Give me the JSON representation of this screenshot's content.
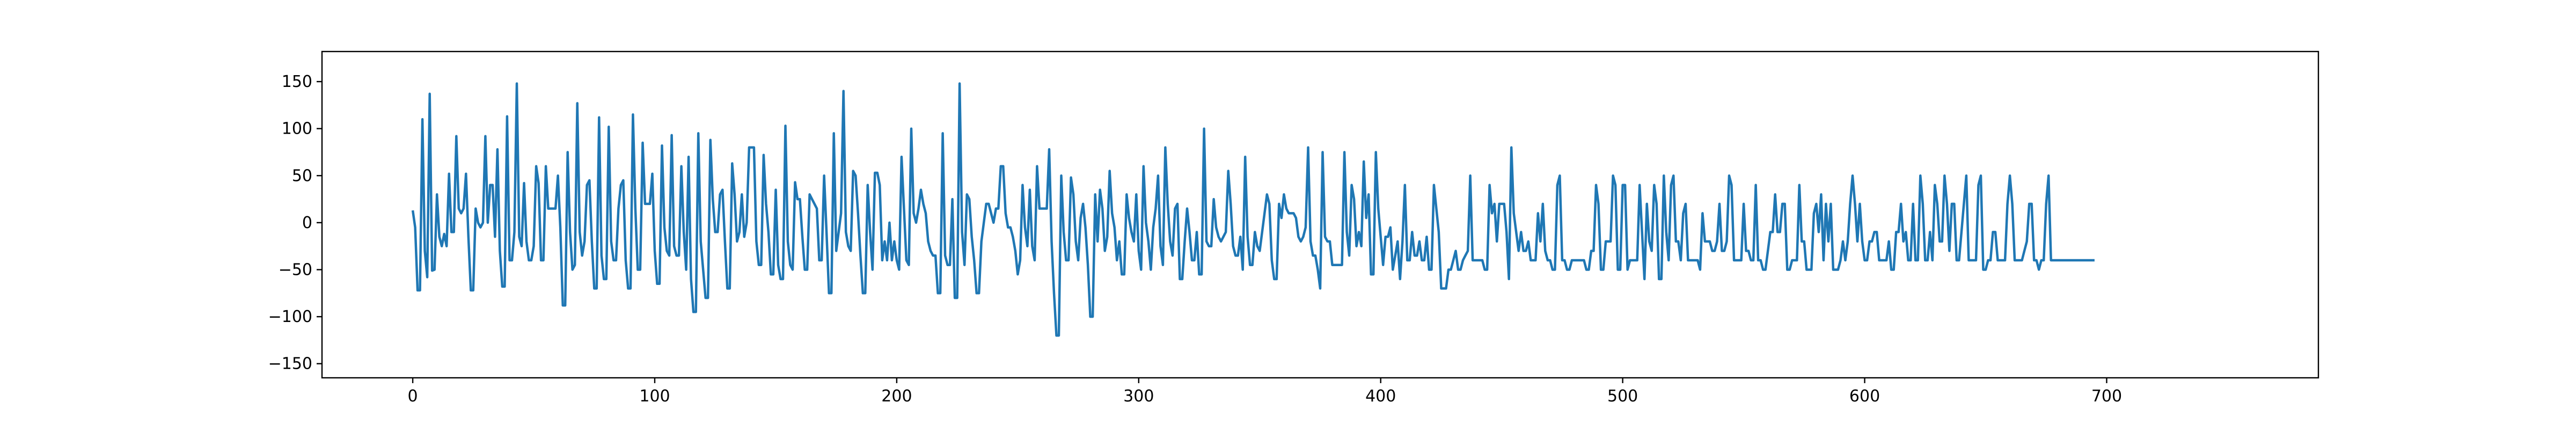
{
  "chart_data": {
    "type": "line",
    "title": "",
    "xlabel": "",
    "ylabel": "",
    "xlim": [
      -37.5,
      787.5
    ],
    "ylim": [
      -165,
      182
    ],
    "xticks": [
      0,
      100,
      200,
      300,
      400,
      500,
      600,
      700
    ],
    "yticks": [
      -150,
      -100,
      -50,
      0,
      50,
      100,
      150
    ],
    "xtick_labels": [
      "0",
      "100",
      "200",
      "300",
      "400",
      "500",
      "600",
      "700"
    ],
    "ytick_labels": [
      "−150",
      "−100",
      "−50",
      "0",
      "50",
      "100",
      "150"
    ],
    "grid": false,
    "legend": "none",
    "line_color": "#1f77b4",
    "series": [
      {
        "x_start": 0,
        "x_step": 1,
        "values": [
          13,
          -5,
          -72,
          -72,
          110,
          -30,
          -58,
          137,
          -51,
          -50,
          30,
          -15,
          -25,
          -12,
          -25,
          52,
          -10,
          -10,
          92,
          15,
          10,
          15,
          52,
          -15,
          -72,
          -72,
          15,
          0,
          -5,
          0,
          92,
          0,
          40,
          40,
          -15,
          78,
          -30,
          -68,
          -68,
          113,
          -40,
          -40,
          -10,
          148,
          -15,
          -25,
          42,
          -20,
          -40,
          -40,
          -25,
          60,
          42,
          -40,
          -40,
          60,
          15,
          15,
          15,
          15,
          50,
          -5,
          -88,
          -88,
          75,
          -10,
          -50,
          -45,
          127,
          -10,
          -35,
          -20,
          40,
          45,
          -20,
          -70,
          -70,
          112,
          -35,
          -60,
          -60,
          102,
          -20,
          -40,
          -40,
          15,
          40,
          45,
          -40,
          -70,
          -70,
          115,
          15,
          -50,
          -50,
          85,
          20,
          20,
          20,
          52,
          -30,
          -65,
          -65,
          82,
          -5,
          -30,
          -35,
          93,
          -25,
          -35,
          -35,
          60,
          -10,
          -50,
          70,
          -60,
          -95,
          -95,
          95,
          -20,
          -50,
          -80,
          -80,
          88,
          25,
          -10,
          -10,
          30,
          35,
          -20,
          -70,
          -70,
          63,
          30,
          -20,
          -10,
          30,
          -15,
          0,
          80,
          80,
          80,
          -20,
          -45,
          -45,
          72,
          20,
          -10,
          -55,
          -55,
          35,
          -45,
          -60,
          -60,
          103,
          -20,
          -45,
          -50,
          43,
          25,
          25,
          -15,
          -50,
          -50,
          30,
          25,
          20,
          15,
          -40,
          -40,
          50,
          -10,
          -75,
          -75,
          95,
          -30,
          -10,
          10,
          140,
          -10,
          -25,
          -30,
          55,
          50,
          10,
          -35,
          -75,
          -75,
          40,
          -10,
          -50,
          53,
          53,
          40,
          -40,
          -20,
          -40,
          0,
          -40,
          -20,
          -40,
          -50,
          70,
          15,
          -40,
          -45,
          100,
          10,
          0,
          15,
          35,
          20,
          10,
          -20,
          -30,
          -35,
          -35,
          -75,
          -75,
          95,
          -35,
          -45,
          -45,
          25,
          -80,
          -80,
          148,
          -10,
          -45,
          30,
          25,
          -15,
          -40,
          -75,
          -75,
          -20,
          0,
          20,
          20,
          10,
          0,
          15,
          15,
          60,
          60,
          10,
          -5,
          -5,
          -15,
          -30,
          -55,
          -40,
          40,
          -5,
          -25,
          35,
          -25,
          -40,
          60,
          15,
          15,
          15,
          15,
          78,
          -20,
          -75,
          -120,
          -120,
          50,
          -10,
          -40,
          -40,
          48,
          30,
          -20,
          -40,
          5,
          20,
          -5,
          -45,
          -100,
          -100,
          30,
          -20,
          35,
          15,
          -30,
          -15,
          55,
          10,
          -5,
          -40,
          -20,
          -55,
          -55,
          30,
          5,
          -10,
          -20,
          30,
          -30,
          -50,
          60,
          0,
          -20,
          -50,
          -5,
          15,
          50,
          -25,
          -45,
          80,
          20,
          -20,
          -35,
          15,
          20,
          -60,
          -60,
          -20,
          15,
          -10,
          -40,
          -40,
          -10,
          -55,
          -55,
          100,
          -20,
          -25,
          -25,
          25,
          -5,
          -15,
          -20,
          -15,
          -10,
          55,
          20,
          -25,
          -35,
          -35,
          -15,
          -50,
          70,
          -15,
          -45,
          -45,
          -10,
          -25,
          -30,
          -10,
          10,
          30,
          20,
          -40,
          -60,
          -60,
          20,
          5,
          30,
          15,
          10,
          10,
          10,
          5,
          -15,
          -20,
          -15,
          -5,
          80,
          -20,
          -35,
          -35,
          -50,
          -70,
          75,
          -15,
          -20,
          -20,
          -45,
          -45,
          -45,
          -45,
          -45,
          75,
          -10,
          -35,
          40,
          25,
          -25,
          -10,
          -25,
          65,
          5,
          30,
          -55,
          -55,
          75,
          15,
          -15,
          -45,
          -15,
          -15,
          -5,
          -50,
          -35,
          -20,
          -60,
          -20,
          40,
          -40,
          -40,
          -10,
          -35,
          -35,
          -20,
          -40,
          -40,
          -15,
          -50,
          -50,
          40,
          15,
          -10,
          -70,
          -70,
          -70,
          -50,
          -50,
          -40,
          -30,
          -50,
          -50,
          -40,
          -35,
          -30,
          50,
          -40,
          -40,
          -40,
          -40,
          -40,
          -50,
          -50,
          40,
          10,
          20,
          -20,
          20,
          20,
          20,
          -10,
          -60,
          80,
          10,
          -10,
          -30,
          -10,
          -30,
          -30,
          -20,
          -40,
          -40,
          -40,
          10,
          -20,
          20,
          -30,
          -40,
          -40,
          -50,
          -50,
          40,
          50,
          -40,
          -40,
          -50,
          -50,
          -40,
          -40,
          -40,
          -40,
          -40,
          -40,
          -50,
          -50,
          -30,
          -30,
          40,
          20,
          -50,
          -50,
          -20,
          -20,
          -20,
          50,
          40,
          -50,
          -50,
          40,
          40,
          -50,
          -40,
          -40,
          -40,
          -40,
          40,
          -10,
          -60,
          20,
          -20,
          -30,
          40,
          20,
          -60,
          -60,
          50,
          -10,
          -40,
          40,
          50,
          -20,
          -20,
          -40,
          10,
          20,
          -40,
          -40,
          -40,
          -40,
          -40,
          -50,
          10,
          -20,
          -20,
          -20,
          -30,
          -30,
          -20,
          20,
          -30,
          -30,
          -20,
          50,
          40,
          -40,
          -40,
          -40,
          -40,
          20,
          -30,
          -30,
          -40,
          -40,
          40,
          -40,
          -40,
          -50,
          -50,
          -30,
          -10,
          -10,
          30,
          -10,
          -10,
          20,
          20,
          -50,
          -50,
          -40,
          -40,
          -40,
          40,
          -20,
          -20,
          -50,
          -50,
          -50,
          10,
          20,
          -10,
          30,
          -40,
          20,
          -20,
          20,
          -50,
          -50,
          -50,
          -40,
          -20,
          -40,
          -20,
          20,
          50,
          20,
          -20,
          20,
          -20,
          -40,
          -40,
          -20,
          -20,
          -10,
          -10,
          -40,
          -40,
          -40,
          -40,
          -20,
          -50,
          -50,
          -10,
          -10,
          20,
          -20,
          -10,
          -40,
          -40,
          20,
          -40,
          -40,
          50,
          20,
          -40,
          -40,
          -10,
          -40,
          40,
          20,
          -20,
          -20,
          50,
          20,
          -30,
          20,
          20,
          -40,
          -40,
          -10,
          20,
          50,
          -40,
          -40,
          -40,
          -40,
          40,
          50,
          -50,
          -50,
          -40,
          -40,
          -10,
          -10,
          -40,
          -40,
          -40,
          -40,
          20,
          50,
          20,
          -40,
          -40,
          -40,
          -40,
          -30,
          -20,
          20,
          20,
          -40,
          -40,
          -50,
          -40,
          -40,
          20,
          50,
          -40,
          -40,
          -40,
          -40,
          -40,
          -40,
          -40,
          -40,
          -40,
          -40,
          -40,
          -40,
          -40,
          -40,
          -40,
          -40,
          -40,
          -40,
          -40
        ]
      }
    ]
  }
}
